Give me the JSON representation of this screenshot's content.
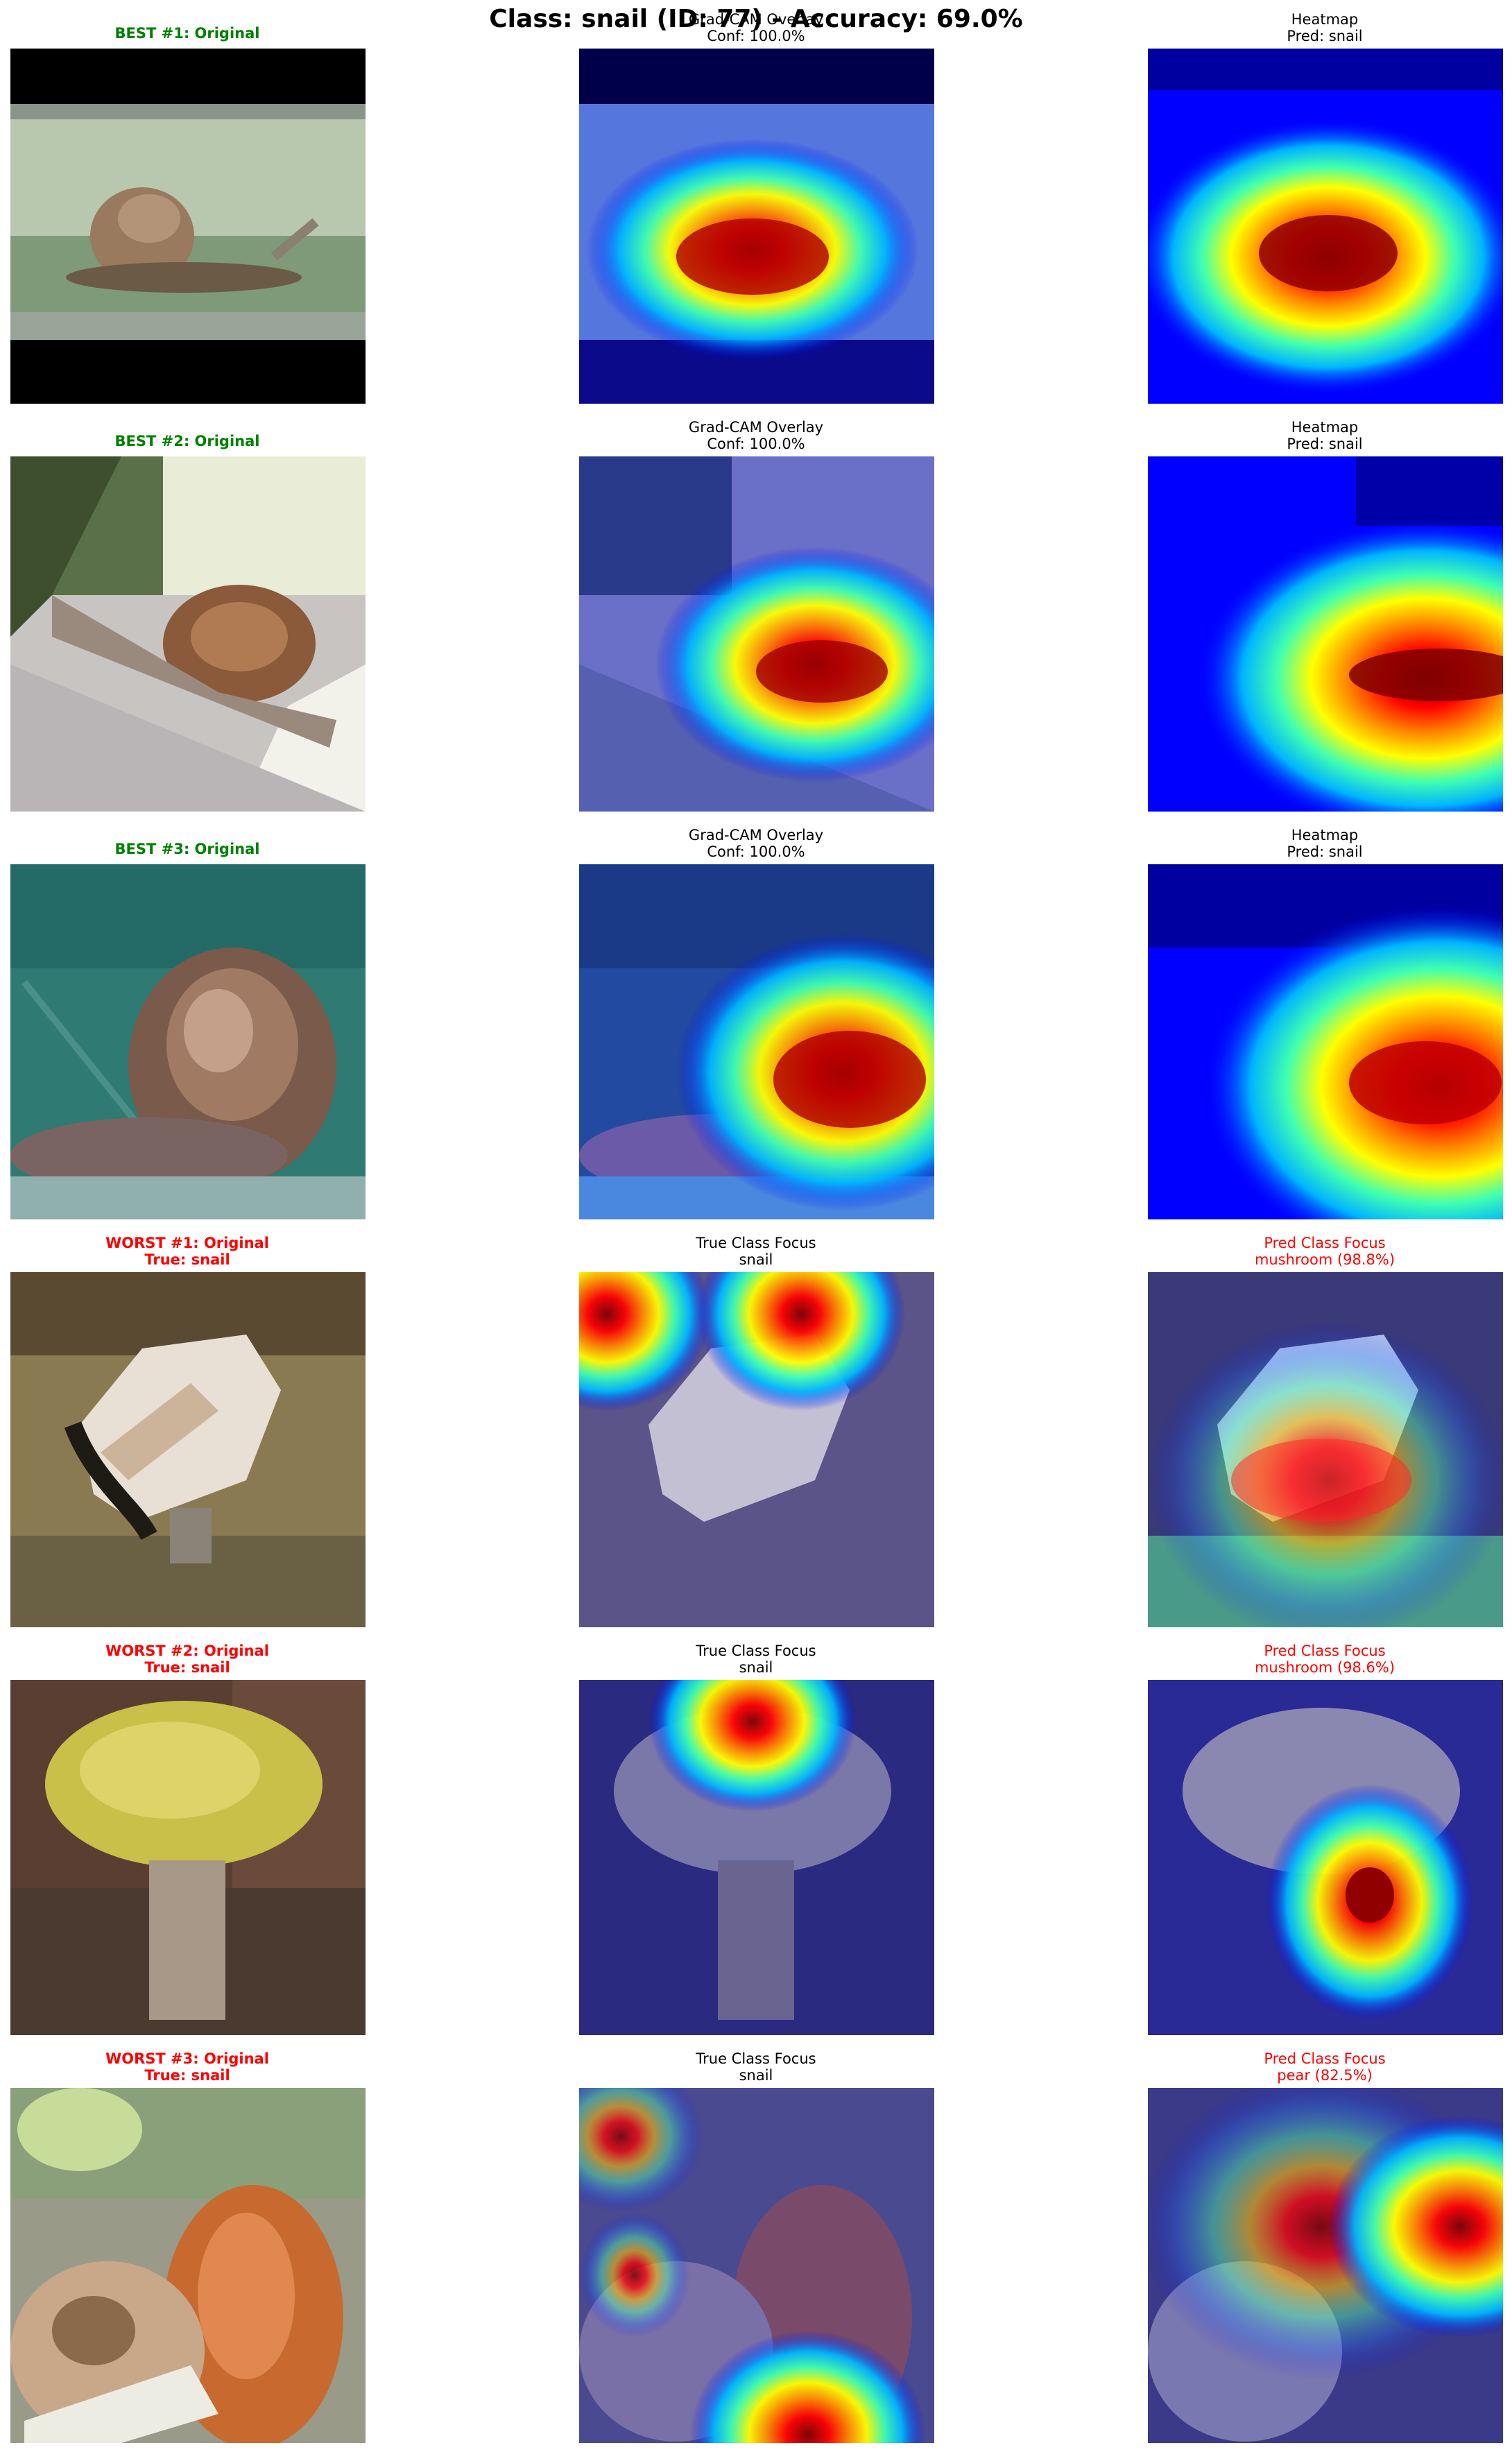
{
  "figure": {
    "title": "Class: snail (ID: 77) - Accuracy: 69.0%",
    "colors": {
      "best_title": "#008000",
      "worst_title": "#ff0000",
      "pred_title": "#ff0000"
    }
  },
  "rows": [
    {
      "original": {
        "line1": "BEST #1: Original",
        "line2": ""
      },
      "overlay": {
        "line1": "Grad-CAM Overlay",
        "line2": "Conf: 100.0%"
      },
      "heatmap": {
        "line1": "Heatmap",
        "line2": "Pred: snail"
      }
    },
    {
      "original": {
        "line1": "BEST #2: Original",
        "line2": ""
      },
      "overlay": {
        "line1": "Grad-CAM Overlay",
        "line2": "Conf: 100.0%"
      },
      "heatmap": {
        "line1": "Heatmap",
        "line2": "Pred: snail"
      }
    },
    {
      "original": {
        "line1": "BEST #3: Original",
        "line2": ""
      },
      "overlay": {
        "line1": "Grad-CAM Overlay",
        "line2": "Conf: 100.0%"
      },
      "heatmap": {
        "line1": "Heatmap",
        "line2": "Pred: snail"
      }
    },
    {
      "original": {
        "line1": "WORST #1: Original",
        "line2": "True: snail"
      },
      "overlay": {
        "line1": "True Class Focus",
        "line2": "snail"
      },
      "heatmap": {
        "line1": "Pred Class Focus",
        "line2": "mushroom (98.8%)"
      }
    },
    {
      "original": {
        "line1": "WORST #2: Original",
        "line2": "True: snail"
      },
      "overlay": {
        "line1": "True Class Focus",
        "line2": "snail"
      },
      "heatmap": {
        "line1": "Pred Class Focus",
        "line2": "mushroom (98.6%)"
      }
    },
    {
      "original": {
        "line1": "WORST #3: Original",
        "line2": "True: snail"
      },
      "overlay": {
        "line1": "True Class Focus",
        "line2": "snail"
      },
      "heatmap": {
        "line1": "Pred Class Focus",
        "line2": "pear (82.5%)"
      }
    }
  ]
}
